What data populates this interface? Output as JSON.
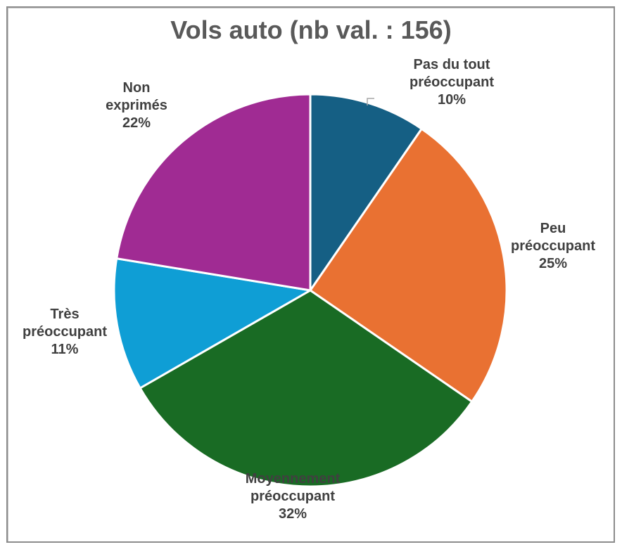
{
  "chart_data": {
    "type": "pie",
    "title": "Vols auto (nb val. : 156)",
    "total": 156,
    "start_angle_deg": 0,
    "direction": "clockwise",
    "legend": "none (data labels on slices)",
    "slices": [
      {
        "label_line1": "Pas du tout",
        "label_line2": "préoccupant",
        "label": "Pas du tout préoccupant",
        "percent_label": "10%",
        "value": 9.6,
        "color": "#155F84"
      },
      {
        "label_line1": "Peu",
        "label_line2": "préoccupant",
        "label": "Peu préoccupant",
        "percent_label": "25%",
        "value": 25.0,
        "color": "#E97132"
      },
      {
        "label_line1": "Moyennement",
        "label_line2": "préoccupant",
        "label": "Moyennement préoccupant",
        "percent_label": "32%",
        "value": 32.1,
        "color": "#196B24"
      },
      {
        "label_line1": "Très",
        "label_line2": "préoccupant",
        "label": "Très préoccupant",
        "percent_label": "11%",
        "value": 10.9,
        "color": "#0F9ED5"
      },
      {
        "label_line1": "Non",
        "label_line2": "exprimés",
        "label": "Non exprimés",
        "percent_label": "22%",
        "value": 22.4,
        "color": "#A02B93"
      }
    ]
  }
}
